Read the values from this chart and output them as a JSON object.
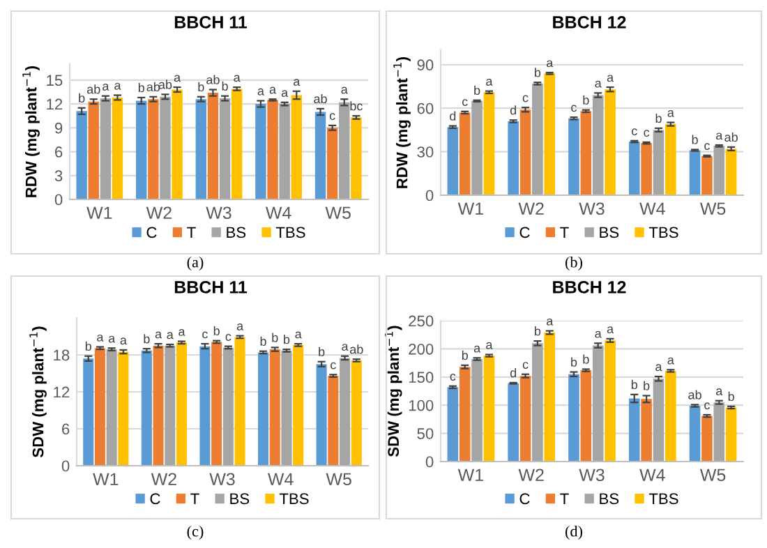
{
  "chart_data": [
    {
      "type": "bar",
      "title": "BBCH 11",
      "ylabel": "RDW (mg plant$^{−1}$)",
      "categories": [
        "W1",
        "W2",
        "W3",
        "W4",
        "W5"
      ],
      "ylim": [
        0,
        17
      ],
      "yticks": [
        0,
        3,
        6,
        9,
        12,
        15
      ],
      "grid": "y",
      "legend": "bottom",
      "annotations": [
        "(a)"
      ],
      "series": [
        {
          "name": "C",
          "color": "#5b9bd5",
          "values": [
            11.1,
            12.4,
            12.6,
            12.0,
            11.0
          ],
          "errors": [
            0.4,
            0.4,
            0.3,
            0.4,
            0.4
          ],
          "value_labels": [
            "b",
            "b",
            "b",
            "a",
            "ab"
          ]
        },
        {
          "name": "T",
          "color": "#ed7d31",
          "values": [
            12.3,
            12.6,
            13.4,
            12.5,
            9.0
          ],
          "errors": [
            0.3,
            0.3,
            0.4,
            0.1,
            0.3
          ],
          "value_labels": [
            "ab",
            "ab",
            "ab",
            "a",
            "c"
          ]
        },
        {
          "name": "BS",
          "color": "#a5a5a5",
          "values": [
            12.7,
            12.9,
            12.7,
            12.0,
            12.2
          ],
          "errors": [
            0.3,
            0.3,
            0.3,
            0.2,
            0.4
          ],
          "value_labels": [
            "a",
            "ab",
            "b",
            "a",
            "a"
          ]
        },
        {
          "name": "TBS",
          "color": "#ffc000",
          "values": [
            12.8,
            13.8,
            13.9,
            13.1,
            10.3
          ],
          "errors": [
            0.3,
            0.3,
            0.2,
            0.5,
            0.2
          ],
          "value_labels": [
            "a",
            "a",
            "a",
            "a",
            "bc"
          ]
        }
      ]
    },
    {
      "type": "bar",
      "title": "BBCH 12",
      "ylabel": "RDW (mg plant$^{−1}$)",
      "categories": [
        "W1",
        "W2",
        "W3",
        "W4",
        "W5"
      ],
      "ylim": [
        0,
        100
      ],
      "yticks": [
        0,
        30,
        60,
        90
      ],
      "grid": "y",
      "legend": "bottom",
      "annotations": [
        "(b)"
      ],
      "series": [
        {
          "name": "C",
          "color": "#5b9bd5",
          "values": [
            47,
            51,
            53,
            37,
            31
          ],
          "errors": [
            0.8,
            0.8,
            0.8,
            0.6,
            0.5
          ],
          "value_labels": [
            "d",
            "d",
            "c",
            "c",
            "b"
          ]
        },
        {
          "name": "T",
          "color": "#ed7d31",
          "values": [
            57,
            59,
            58,
            36,
            27
          ],
          "errors": [
            0.8,
            1.5,
            0.8,
            0.6,
            0.5
          ],
          "value_labels": [
            "c",
            "c",
            "b",
            "c",
            "c"
          ]
        },
        {
          "name": "BS",
          "color": "#a5a5a5",
          "values": [
            65,
            77,
            69,
            45,
            34
          ],
          "errors": [
            0.5,
            0.8,
            1.5,
            1.2,
            0.6
          ],
          "value_labels": [
            "b",
            "b",
            "a",
            "b",
            "a"
          ]
        },
        {
          "name": "TBS",
          "color": "#ffc000",
          "values": [
            71,
            84,
            73,
            49,
            32
          ],
          "errors": [
            0.8,
            0.6,
            1.5,
            1.2,
            1.2
          ],
          "value_labels": [
            "a",
            "a",
            "a",
            "a",
            "ab"
          ]
        }
      ]
    },
    {
      "type": "bar",
      "title": "BBCH 11",
      "ylabel": "SDW (mg plant$^{−1}$)",
      "categories": [
        "W1",
        "W2",
        "W3",
        "W4",
        "W5"
      ],
      "ylim": [
        0,
        24
      ],
      "yticks": [
        0,
        6,
        12,
        18
      ],
      "grid": "y",
      "legend": "bottom",
      "annotations": [
        "(c)"
      ],
      "series": [
        {
          "name": "C",
          "color": "#5b9bd5",
          "values": [
            17.4,
            18.7,
            19.4,
            18.4,
            16.5
          ],
          "errors": [
            0.4,
            0.3,
            0.4,
            0.2,
            0.4
          ],
          "value_labels": [
            "b",
            "b",
            "c",
            "b",
            "b"
          ]
        },
        {
          "name": "T",
          "color": "#ed7d31",
          "values": [
            19.1,
            19.5,
            20.1,
            18.9,
            14.6
          ],
          "errors": [
            0.2,
            0.3,
            0.2,
            0.3,
            0.2
          ],
          "value_labels": [
            "a",
            "a",
            "b",
            "b",
            "c"
          ]
        },
        {
          "name": "BS",
          "color": "#a5a5a5",
          "values": [
            18.9,
            19.5,
            19.2,
            18.7,
            17.5
          ],
          "errors": [
            0.2,
            0.2,
            0.2,
            0.2,
            0.3
          ],
          "value_labels": [
            "a",
            "a",
            "c",
            "b",
            "a"
          ]
        },
        {
          "name": "TBS",
          "color": "#ffc000",
          "values": [
            18.5,
            20.0,
            20.9,
            19.6,
            17.1
          ],
          "errors": [
            0.3,
            0.2,
            0.2,
            0.2,
            0.2
          ],
          "value_labels": [
            "a",
            "a",
            "a",
            "a",
            "ab"
          ]
        }
      ]
    },
    {
      "type": "bar",
      "title": "BBCH 12",
      "ylabel": "SDW (mg plant$^{−1}$)",
      "categories": [
        "W1",
        "W2",
        "W3",
        "W4",
        "W5"
      ],
      "ylim": [
        0,
        250
      ],
      "yticks": [
        0,
        50,
        100,
        150,
        200,
        250
      ],
      "grid": "y",
      "legend": "bottom",
      "annotations": [
        "(d)"
      ],
      "series": [
        {
          "name": "C",
          "color": "#5b9bd5",
          "values": [
            132,
            139,
            155,
            112,
            99
          ],
          "errors": [
            2,
            1,
            4,
            7,
            2
          ],
          "value_labels": [
            "c",
            "d",
            "b",
            "b",
            "ab"
          ]
        },
        {
          "name": "T",
          "color": "#ed7d31",
          "values": [
            168,
            152,
            162,
            111,
            81
          ],
          "errors": [
            3,
            3,
            2,
            6,
            2
          ],
          "value_labels": [
            "b",
            "c",
            "b",
            "b",
            "c"
          ]
        },
        {
          "name": "BS",
          "color": "#a5a5a5",
          "values": [
            182,
            210,
            206,
            147,
            105
          ],
          "errors": [
            2,
            4,
            4,
            4,
            3
          ],
          "value_labels": [
            "a",
            "b",
            "a",
            "a",
            "a"
          ]
        },
        {
          "name": "TBS",
          "color": "#ffc000",
          "values": [
            188,
            229,
            215,
            161,
            96
          ],
          "errors": [
            2,
            3,
            3,
            2,
            2
          ],
          "value_labels": [
            "a",
            "a",
            "a",
            "a",
            "b"
          ]
        }
      ]
    }
  ]
}
